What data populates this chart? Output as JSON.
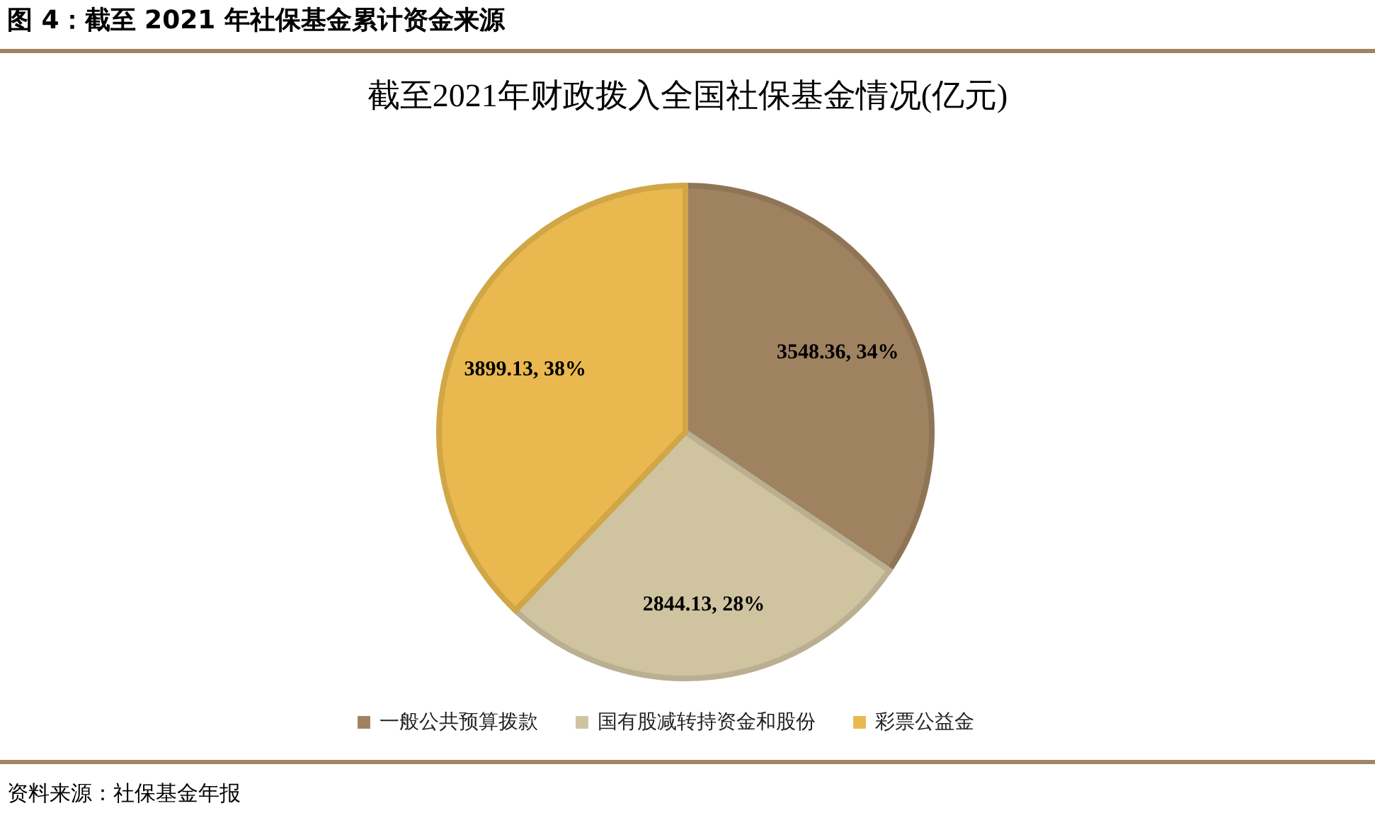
{
  "chart_data": {
    "type": "pie",
    "title": "截至2021年财政拨入全国社保基金情况(亿元)",
    "categories": [
      "一般公共预算拨款",
      "国有股减转持资金和股份",
      "彩票公益金"
    ],
    "values": [
      3548.36,
      2844.13,
      3899.13
    ],
    "colors": [
      "#9f8260",
      "#cfc3a0",
      "#e9b94f"
    ],
    "value_labels": [
      "3548.36, 34%",
      "2844.13, 28%",
      "3899.13, 38%"
    ],
    "legend": "bottom",
    "annotations": [
      "图 4：截至 2021 年社保基金累计资金来源",
      "资料来源：社保基金年报"
    ]
  }
}
